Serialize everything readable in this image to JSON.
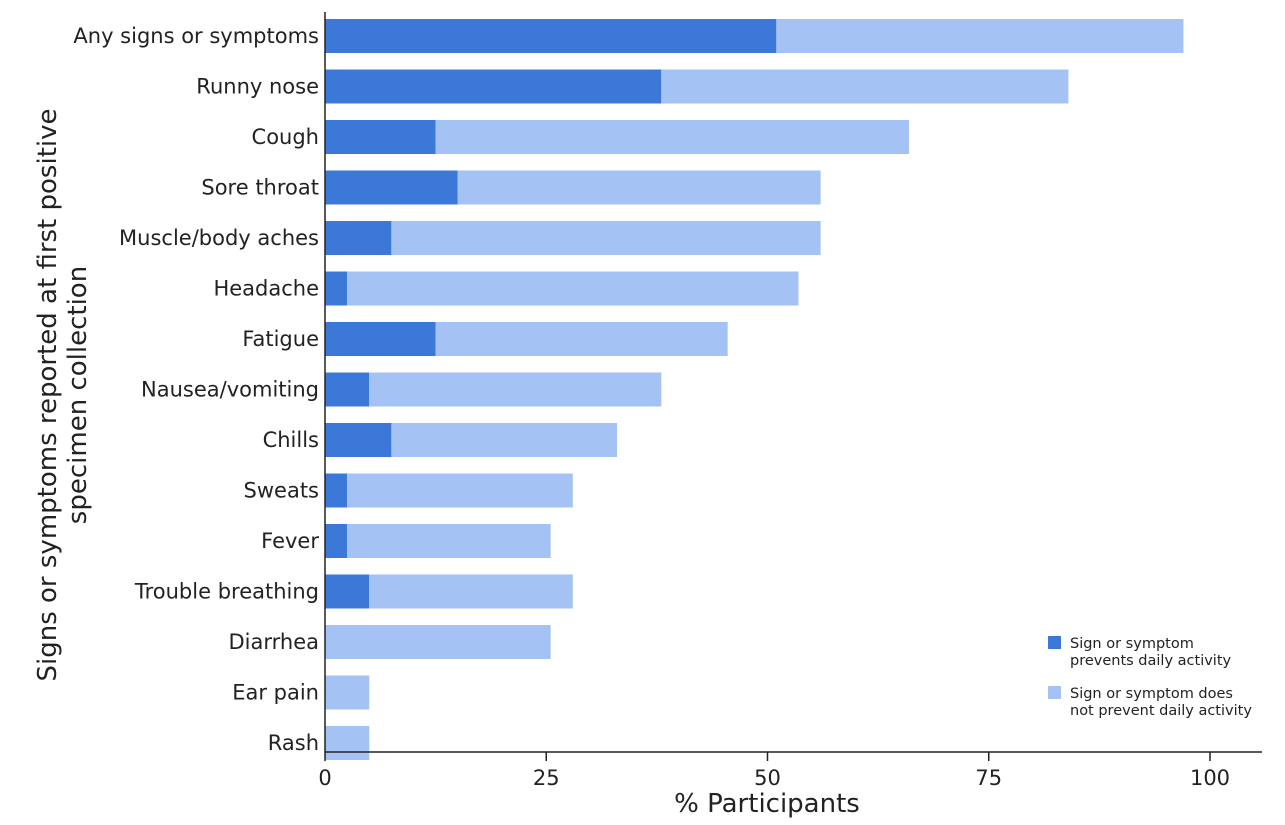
{
  "chart_data": {
    "type": "bar",
    "orientation": "horizontal",
    "stacked": true,
    "categories": [
      "Any signs or symptoms",
      "Runny nose",
      "Cough",
      "Sore throat",
      "Muscle/body aches",
      "Headache",
      "Fatigue",
      "Nausea/vomiting",
      "Chills",
      "Sweats",
      "Fever",
      "Trouble breathing",
      "Diarrhea",
      "Ear pain",
      "Rash"
    ],
    "series": [
      {
        "name": "Sign or symptom prevents daily activity",
        "color": "#3c78d8",
        "values": [
          51,
          38,
          12.5,
          15,
          7.5,
          2.5,
          12.5,
          5,
          7.5,
          2.5,
          2.5,
          5,
          0,
          0,
          0
        ]
      },
      {
        "name": "Sign or symptom does not prevent daily activity",
        "color": "#a4c2f4",
        "values": [
          46,
          46,
          53.5,
          41,
          48.5,
          51,
          33,
          33,
          25.5,
          25.5,
          23,
          23,
          25.5,
          5,
          5
        ]
      }
    ],
    "xlabel": "% Participants",
    "ylabel": "Signs or symptoms reported at first positive specimen collection",
    "xlim": [
      0,
      100
    ],
    "xticks": [
      "0",
      "25",
      "50",
      "75",
      "100"
    ],
    "legend": {
      "position": "bottom-right",
      "entries": [
        {
          "line1": "Sign or symptom",
          "line2": "prevents daily activity"
        },
        {
          "line1": "Sign or symptom does",
          "line2": "not prevent daily activity"
        }
      ]
    },
    "grid": false
  }
}
